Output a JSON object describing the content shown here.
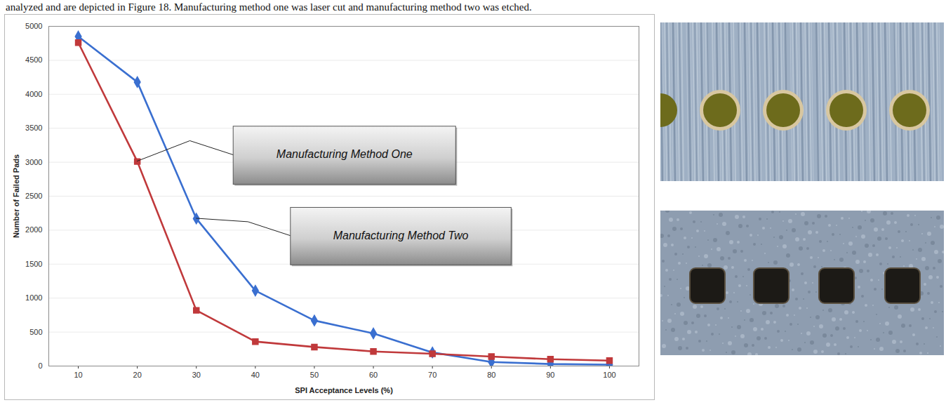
{
  "caption": "analyzed and are depicted in Figure 18.  Manufacturing method one was laser cut and manufacturing method two was etched.",
  "chart_data": {
    "type": "line",
    "x_label": "SPI Acceptance Levels (%)",
    "y_label": "Number of Failed Pads",
    "x": [
      10,
      20,
      30,
      40,
      50,
      60,
      70,
      80,
      90,
      100
    ],
    "series": [
      {
        "name": "Manufacturing Method One",
        "color": "#c0393b",
        "marker": "square",
        "values": [
          4760,
          3010,
          820,
          360,
          280,
          215,
          180,
          140,
          100,
          80
        ]
      },
      {
        "name": "Manufacturing Method Two",
        "color": "#3a6fd0",
        "marker": "diamond",
        "values": [
          4850,
          4180,
          2170,
          1110,
          670,
          480,
          200,
          60,
          30,
          20
        ]
      }
    ],
    "xlim": [
      5,
      105
    ],
    "xticks": [
      10,
      20,
      30,
      40,
      50,
      60,
      70,
      80,
      90,
      100
    ],
    "ylim": [
      0,
      5000
    ],
    "yticks": [
      0,
      500,
      1000,
      1500,
      2000,
      2500,
      3000,
      3500,
      4000,
      4500,
      5000
    ],
    "grid": true
  }
}
